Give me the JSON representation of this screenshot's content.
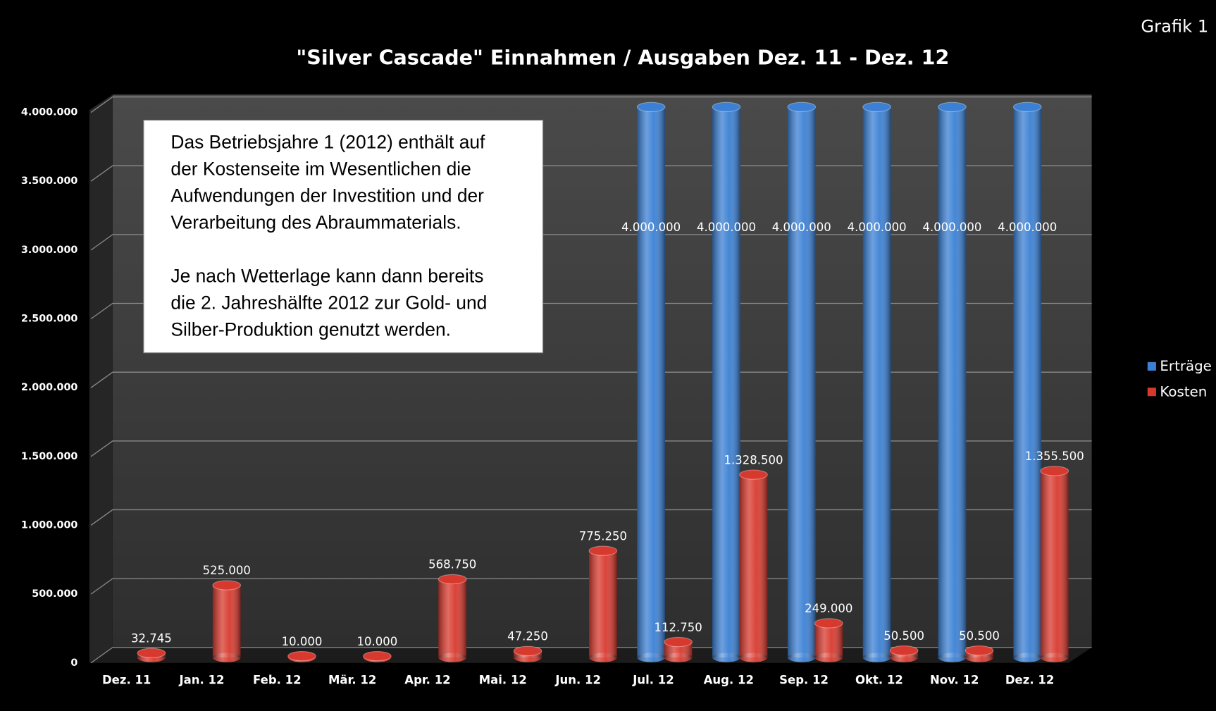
{
  "label": "Grafik 1",
  "chart_data": {
    "type": "bar",
    "title": "\"Silver Cascade\" Einnahmen / Ausgaben Dez. 11 - Dez. 12",
    "annotation": [
      [
        "Das Betriebsjahre 1 (2012) enthält auf",
        "der Kostenseite im Wesentlichen die",
        "Aufwendungen der Investition und der",
        "Verarbeitung des Abraummaterials."
      ],
      [
        "Je nach Wetterlage kann dann bereits",
        "die 2. Jahreshälfte 2012 zur Gold- und",
        "Silber-Produktion genutzt werden."
      ]
    ],
    "categories": [
      "Dez. 11",
      "Jan. 12",
      "Feb. 12",
      "Mär. 12",
      "Apr. 12",
      "Mai. 12",
      "Jun. 12",
      "Jul. 12",
      "Aug. 12",
      "Sep. 12",
      "Okt. 12",
      "Nov. 12",
      "Dez. 12"
    ],
    "series": [
      {
        "name": "Erträge",
        "color": "#3b80d4",
        "values": [
          null,
          null,
          null,
          null,
          null,
          null,
          null,
          4000000,
          4000000,
          4000000,
          4000000,
          4000000,
          4000000
        ],
        "value_labels": [
          null,
          null,
          null,
          null,
          null,
          null,
          null,
          "4.000.000",
          "4.000.000",
          "4.000.000",
          "4.000.000",
          "4.000.000",
          "4.000.000"
        ]
      },
      {
        "name": "Kosten",
        "color": "#d8392e",
        "values": [
          32745,
          525000,
          10000,
          10000,
          568750,
          47250,
          775250,
          112750,
          1328500,
          249000,
          50500,
          50500,
          1355500
        ],
        "value_labels": [
          "32.745",
          "525.000",
          "10.000",
          "10.000",
          "568.750",
          "47.250",
          "775.250",
          "112.750",
          "1.328.500",
          "249.000",
          "50.500",
          "50.500",
          "1.355.500"
        ]
      }
    ],
    "ylim": [
      0,
      4000000
    ],
    "yticks": [
      0,
      {
        "value": 500000,
        "label": "500.000"
      },
      {
        "value": 1000000,
        "label": "1.000.000"
      },
      {
        "value": 1500000,
        "label": "1.500.000"
      },
      {
        "value": 2000000,
        "label": "2.000.000"
      },
      {
        "value": 2500000,
        "label": "2.500.000"
      },
      {
        "value": 3000000,
        "label": "3.000.000"
      },
      {
        "value": 3500000,
        "label": "3.500.000"
      },
      {
        "value": 4000000,
        "label": "4.000.000"
      }
    ],
    "grid": true,
    "legend": "right"
  }
}
